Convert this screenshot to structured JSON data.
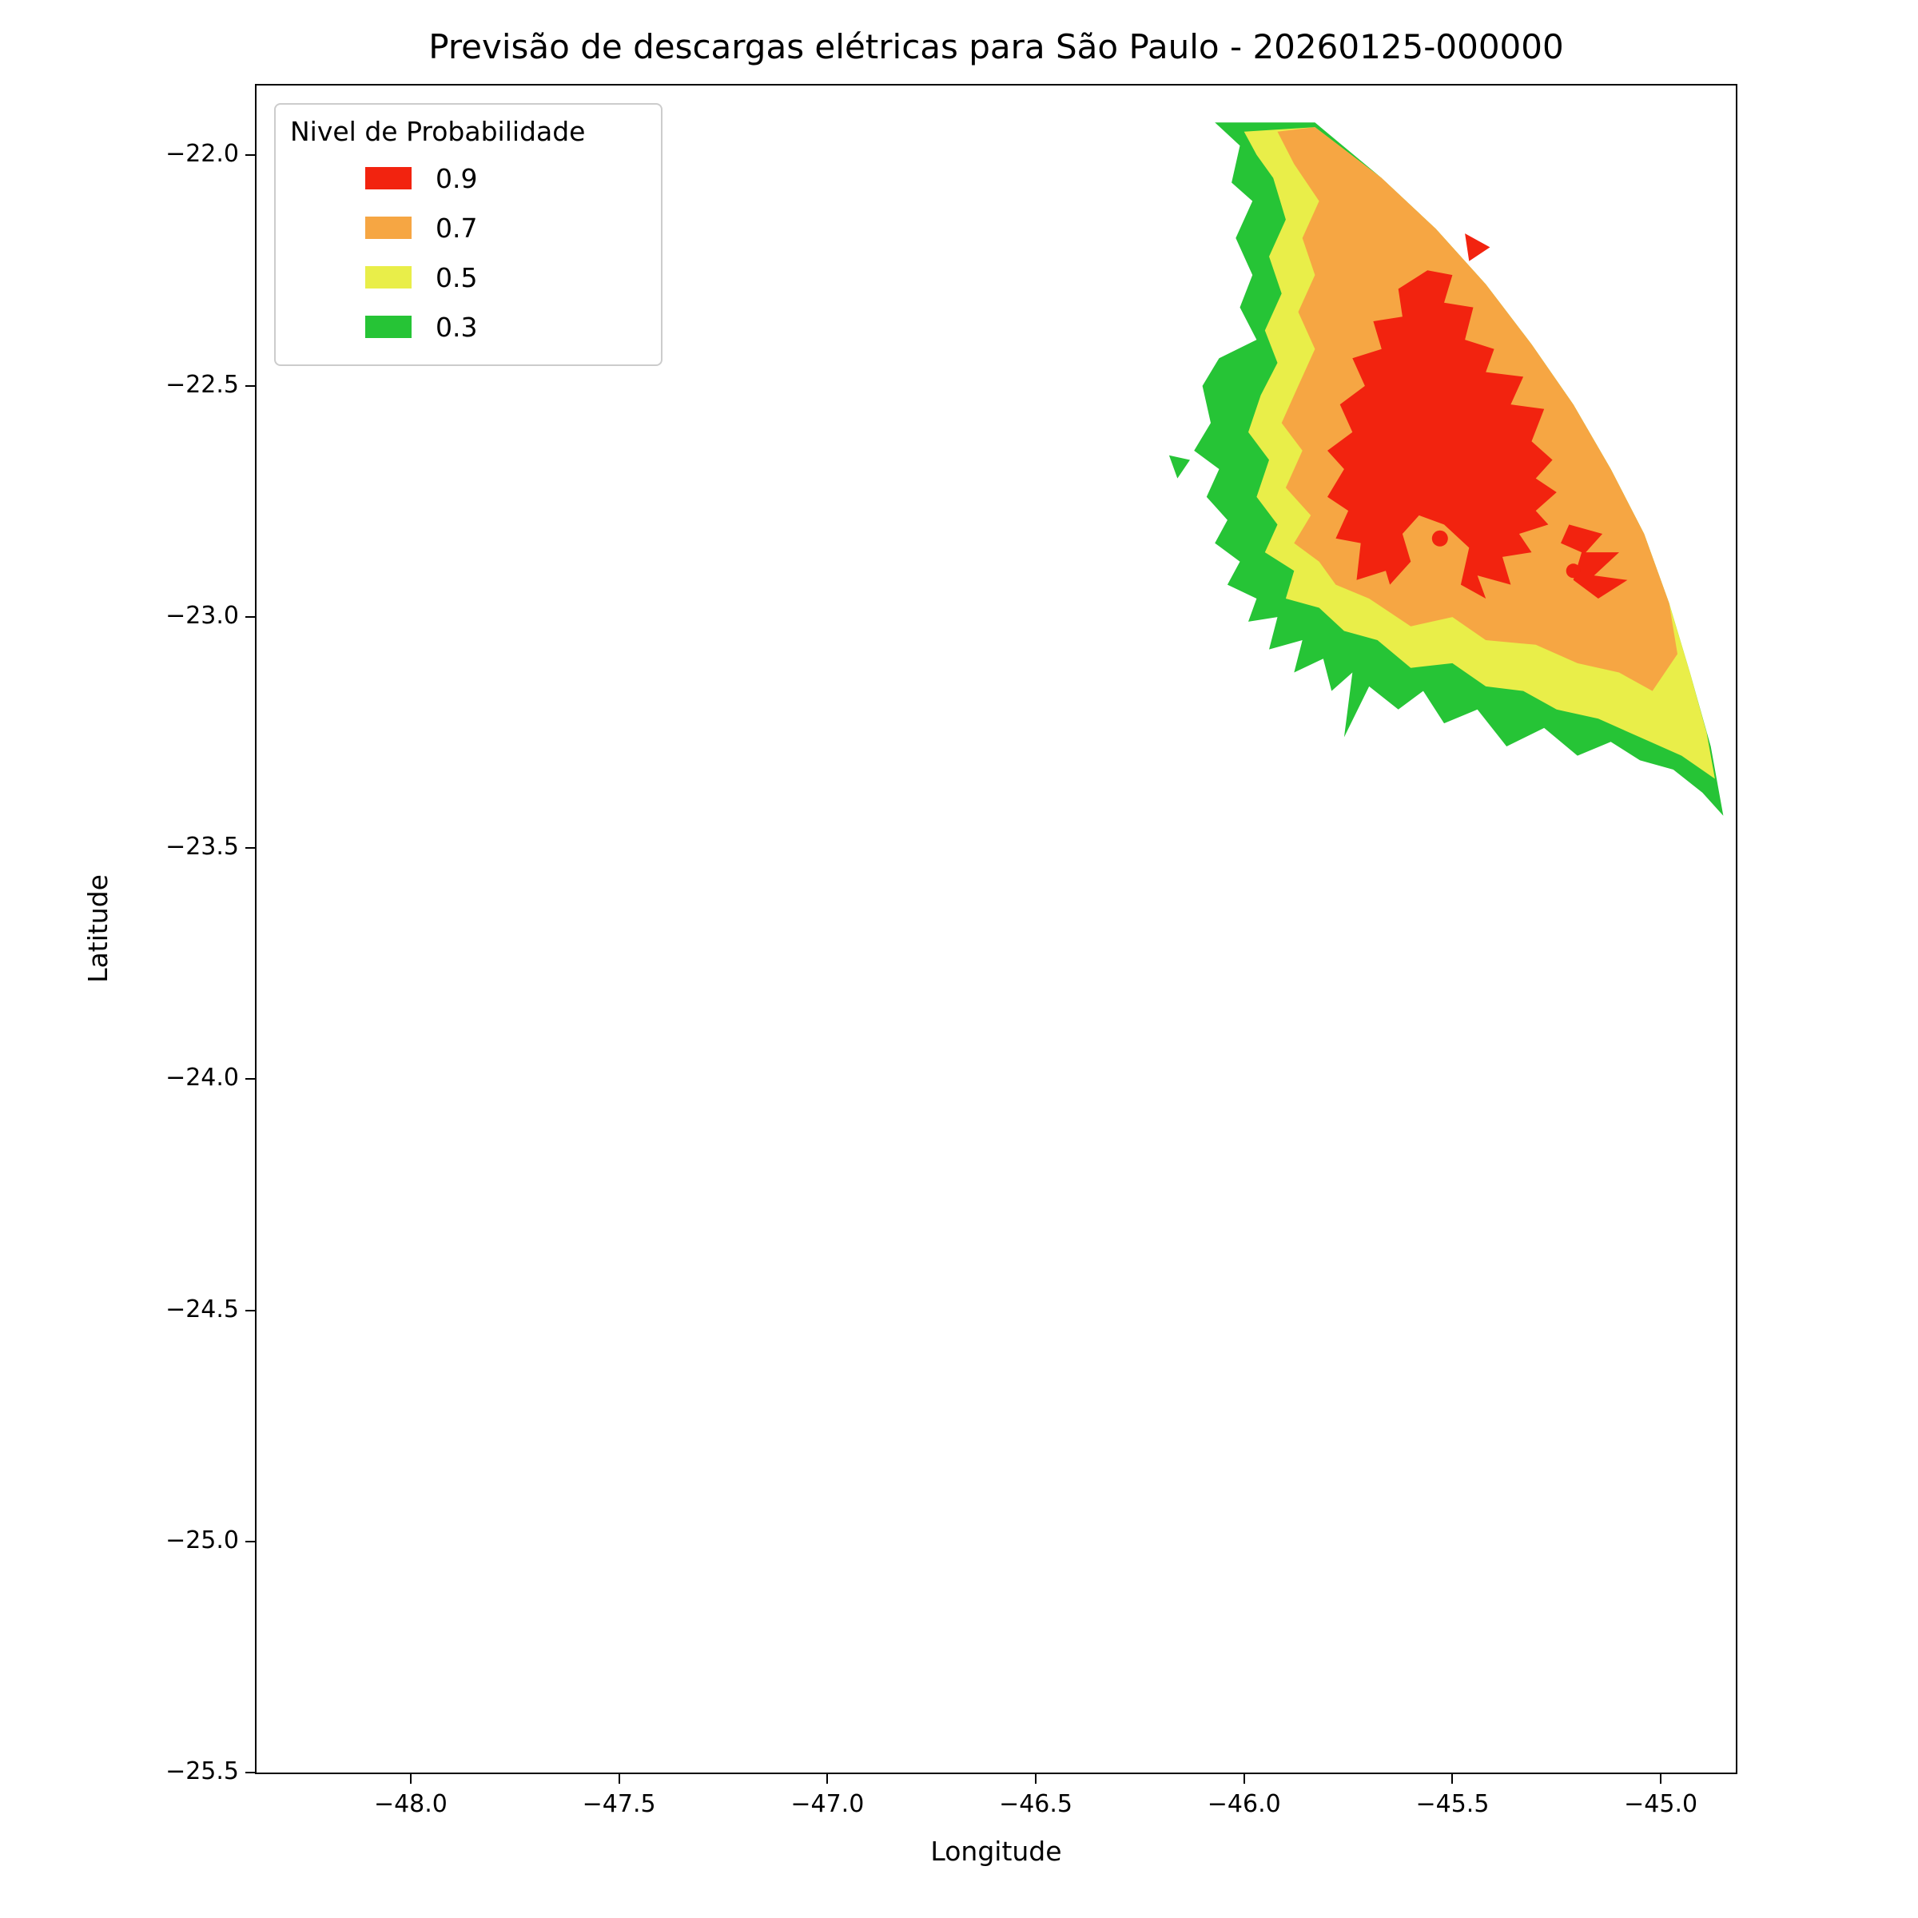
{
  "chart_data": {
    "type": "contour-map",
    "title": "Previsão de descargas elétricas para São Paulo - 20260125-000000",
    "xlabel": "Longitude",
    "ylabel": "Latitude",
    "xlim": [
      -48.37,
      -44.82
    ],
    "ylim": [
      -25.5,
      -21.85
    ],
    "grid": false,
    "xticks": [
      -48.0,
      -47.5,
      -47.0,
      -46.5,
      -46.0,
      -45.5,
      -45.0
    ],
    "xtick_labels": [
      "−48.0",
      "−47.5",
      "−47.0",
      "−46.5",
      "−46.0",
      "−45.5",
      "−45.0"
    ],
    "yticks": [
      -22.0,
      -22.5,
      -23.0,
      -23.5,
      -24.0,
      -24.5,
      -25.0,
      -25.5
    ],
    "ytick_labels": [
      "−22.0",
      "−22.5",
      "−23.0",
      "−23.5",
      "−24.0",
      "−24.5",
      "−25.0",
      "−25.5"
    ],
    "colors": {
      "p09": "#f2230f",
      "p07": "#f6a643",
      "p05": "#e9ee49",
      "p03": "#26c436",
      "axis": "#000000",
      "legend_border": "#cccccc"
    },
    "legend": {
      "title": "Nivel de Probabilidade",
      "position": "upper-left",
      "entries": [
        {
          "label": "0.9",
          "color": "#f2230f"
        },
        {
          "label": "0.7",
          "color": "#f6a643"
        },
        {
          "label": "0.5",
          "color": "#e9ee49"
        },
        {
          "label": "0.3",
          "color": "#26c436"
        }
      ]
    },
    "regions": [
      {
        "name": "prob-0.3",
        "level": 0.3,
        "color": "#26c436",
        "points": [
          [
            -46.07,
            -21.93
          ],
          [
            -46.01,
            -21.98
          ],
          [
            -46.03,
            -22.06
          ],
          [
            -45.98,
            -22.1
          ],
          [
            -46.02,
            -22.18
          ],
          [
            -45.98,
            -22.26
          ],
          [
            -46.01,
            -22.33
          ],
          [
            -45.97,
            -22.4
          ],
          [
            -46.06,
            -22.44
          ],
          [
            -46.1,
            -22.5
          ],
          [
            -46.08,
            -22.58
          ],
          [
            -46.12,
            -22.64
          ],
          [
            -46.06,
            -22.68
          ],
          [
            -46.09,
            -22.74
          ],
          [
            -46.04,
            -22.79
          ],
          [
            -46.07,
            -22.84
          ],
          [
            -46.01,
            -22.88
          ],
          [
            -46.04,
            -22.93
          ],
          [
            -45.97,
            -22.96
          ],
          [
            -45.99,
            -23.01
          ],
          [
            -45.92,
            -23.0
          ],
          [
            -45.94,
            -23.07
          ],
          [
            -45.86,
            -23.05
          ],
          [
            -45.88,
            -23.12
          ],
          [
            -45.81,
            -23.09
          ],
          [
            -45.79,
            -23.16
          ],
          [
            -45.74,
            -23.12
          ],
          [
            -45.76,
            -23.26
          ],
          [
            -45.7,
            -23.15
          ],
          [
            -45.63,
            -23.2
          ],
          [
            -45.57,
            -23.16
          ],
          [
            -45.52,
            -23.23
          ],
          [
            -45.44,
            -23.2
          ],
          [
            -45.37,
            -23.28
          ],
          [
            -45.28,
            -23.24
          ],
          [
            -45.2,
            -23.3
          ],
          [
            -45.12,
            -23.27
          ],
          [
            -45.05,
            -23.31
          ],
          [
            -44.97,
            -23.33
          ],
          [
            -44.9,
            -23.38
          ],
          [
            -44.85,
            -23.43
          ],
          [
            -44.88,
            -23.28
          ],
          [
            -44.93,
            -23.12
          ],
          [
            -44.98,
            -22.97
          ],
          [
            -45.04,
            -22.82
          ],
          [
            -45.12,
            -22.68
          ],
          [
            -45.21,
            -22.54
          ],
          [
            -45.31,
            -22.41
          ],
          [
            -45.42,
            -22.28
          ],
          [
            -45.54,
            -22.16
          ],
          [
            -45.67,
            -22.05
          ],
          [
            -45.83,
            -21.93
          ]
        ]
      },
      {
        "name": "prob-0.3-speck",
        "level": 0.3,
        "color": "#26c436",
        "points": [
          [
            -46.18,
            -22.65
          ],
          [
            -46.13,
            -22.66
          ],
          [
            -46.16,
            -22.7
          ]
        ]
      },
      {
        "name": "prob-0.5",
        "level": 0.5,
        "color": "#e9ee49",
        "points": [
          [
            -46.0,
            -21.95
          ],
          [
            -45.83,
            -21.94
          ],
          [
            -45.67,
            -22.05
          ],
          [
            -45.54,
            -22.16
          ],
          [
            -45.42,
            -22.28
          ],
          [
            -45.31,
            -22.41
          ],
          [
            -45.21,
            -22.54
          ],
          [
            -45.12,
            -22.68
          ],
          [
            -45.04,
            -22.82
          ],
          [
            -44.98,
            -22.97
          ],
          [
            -44.93,
            -23.12
          ],
          [
            -44.89,
            -23.25
          ],
          [
            -44.87,
            -23.35
          ],
          [
            -44.95,
            -23.3
          ],
          [
            -45.05,
            -23.26
          ],
          [
            -45.15,
            -23.22
          ],
          [
            -45.25,
            -23.2
          ],
          [
            -45.33,
            -23.16
          ],
          [
            -45.42,
            -23.15
          ],
          [
            -45.5,
            -23.1
          ],
          [
            -45.6,
            -23.11
          ],
          [
            -45.68,
            -23.05
          ],
          [
            -45.76,
            -23.03
          ],
          [
            -45.82,
            -22.98
          ],
          [
            -45.9,
            -22.96
          ],
          [
            -45.88,
            -22.9
          ],
          [
            -45.95,
            -22.86
          ],
          [
            -45.92,
            -22.8
          ],
          [
            -45.97,
            -22.74
          ],
          [
            -45.94,
            -22.66
          ],
          [
            -45.99,
            -22.6
          ],
          [
            -45.96,
            -22.52
          ],
          [
            -45.92,
            -22.45
          ],
          [
            -45.95,
            -22.38
          ],
          [
            -45.91,
            -22.3
          ],
          [
            -45.94,
            -22.22
          ],
          [
            -45.9,
            -22.14
          ],
          [
            -45.93,
            -22.05
          ],
          [
            -45.97,
            -22.0
          ]
        ]
      },
      {
        "name": "prob-0.7",
        "level": 0.7,
        "color": "#f6a643",
        "points": [
          [
            -45.92,
            -21.95
          ],
          [
            -45.83,
            -21.94
          ],
          [
            -45.67,
            -22.05
          ],
          [
            -45.54,
            -22.16
          ],
          [
            -45.42,
            -22.28
          ],
          [
            -45.31,
            -22.41
          ],
          [
            -45.21,
            -22.54
          ],
          [
            -45.12,
            -22.68
          ],
          [
            -45.04,
            -22.82
          ],
          [
            -44.98,
            -22.97
          ],
          [
            -44.96,
            -23.08
          ],
          [
            -45.02,
            -23.16
          ],
          [
            -45.1,
            -23.12
          ],
          [
            -45.2,
            -23.1
          ],
          [
            -45.3,
            -23.06
          ],
          [
            -45.42,
            -23.05
          ],
          [
            -45.5,
            -23.0
          ],
          [
            -45.6,
            -23.02
          ],
          [
            -45.7,
            -22.96
          ],
          [
            -45.78,
            -22.93
          ],
          [
            -45.82,
            -22.88
          ],
          [
            -45.88,
            -22.84
          ],
          [
            -45.84,
            -22.78
          ],
          [
            -45.9,
            -22.72
          ],
          [
            -45.86,
            -22.64
          ],
          [
            -45.91,
            -22.58
          ],
          [
            -45.87,
            -22.5
          ],
          [
            -45.83,
            -22.42
          ],
          [
            -45.87,
            -22.34
          ],
          [
            -45.83,
            -22.26
          ],
          [
            -45.86,
            -22.18
          ],
          [
            -45.82,
            -22.1
          ],
          [
            -45.88,
            -22.02
          ]
        ]
      },
      {
        "name": "prob-0.9-core",
        "level": 0.9,
        "color": "#f2230f",
        "points": [
          [
            -45.56,
            -22.25
          ],
          [
            -45.5,
            -22.26
          ],
          [
            -45.52,
            -22.32
          ],
          [
            -45.45,
            -22.33
          ],
          [
            -45.47,
            -22.4
          ],
          [
            -45.4,
            -22.42
          ],
          [
            -45.42,
            -22.47
          ],
          [
            -45.33,
            -22.48
          ],
          [
            -45.36,
            -22.54
          ],
          [
            -45.28,
            -22.55
          ],
          [
            -45.31,
            -22.62
          ],
          [
            -45.26,
            -22.66
          ],
          [
            -45.3,
            -22.7
          ],
          [
            -45.25,
            -22.73
          ],
          [
            -45.3,
            -22.77
          ],
          [
            -45.27,
            -22.8
          ],
          [
            -45.34,
            -22.82
          ],
          [
            -45.31,
            -22.86
          ],
          [
            -45.38,
            -22.87
          ],
          [
            -45.36,
            -22.93
          ],
          [
            -45.44,
            -22.91
          ],
          [
            -45.42,
            -22.96
          ],
          [
            -45.48,
            -22.93
          ],
          [
            -45.46,
            -22.85
          ],
          [
            -45.52,
            -22.8
          ],
          [
            -45.58,
            -22.78
          ],
          [
            -45.62,
            -22.82
          ],
          [
            -45.6,
            -22.88
          ],
          [
            -45.65,
            -22.93
          ],
          [
            -45.66,
            -22.9
          ],
          [
            -45.73,
            -22.92
          ],
          [
            -45.72,
            -22.84
          ],
          [
            -45.78,
            -22.83
          ],
          [
            -45.75,
            -22.77
          ],
          [
            -45.8,
            -22.74
          ],
          [
            -45.76,
            -22.68
          ],
          [
            -45.8,
            -22.64
          ],
          [
            -45.74,
            -22.6
          ],
          [
            -45.77,
            -22.54
          ],
          [
            -45.71,
            -22.5
          ],
          [
            -45.74,
            -22.44
          ],
          [
            -45.67,
            -22.42
          ],
          [
            -45.69,
            -22.36
          ],
          [
            -45.62,
            -22.35
          ],
          [
            -45.63,
            -22.29
          ]
        ]
      },
      {
        "name": "prob-0.9-east",
        "level": 0.9,
        "color": "#f2230f",
        "points": [
          [
            -45.22,
            -22.8
          ],
          [
            -45.14,
            -22.82
          ],
          [
            -45.18,
            -22.86
          ],
          [
            -45.1,
            -22.86
          ],
          [
            -45.16,
            -22.91
          ],
          [
            -45.08,
            -22.92
          ],
          [
            -45.15,
            -22.96
          ],
          [
            -45.21,
            -22.92
          ],
          [
            -45.19,
            -22.86
          ],
          [
            -45.24,
            -22.84
          ]
        ]
      },
      {
        "name": "prob-0.9-north-speck",
        "level": 0.9,
        "color": "#f2230f",
        "points": [
          [
            -45.47,
            -22.17
          ],
          [
            -45.41,
            -22.2
          ],
          [
            -45.46,
            -22.23
          ]
        ]
      }
    ],
    "markers": [
      {
        "name": "strike-dot-1",
        "lon": -45.53,
        "lat": -22.83,
        "r": 10,
        "color": "#f2230f"
      },
      {
        "name": "strike-dot-2",
        "lon": -45.21,
        "lat": -22.9,
        "r": 9,
        "color": "#f2230f"
      }
    ]
  }
}
